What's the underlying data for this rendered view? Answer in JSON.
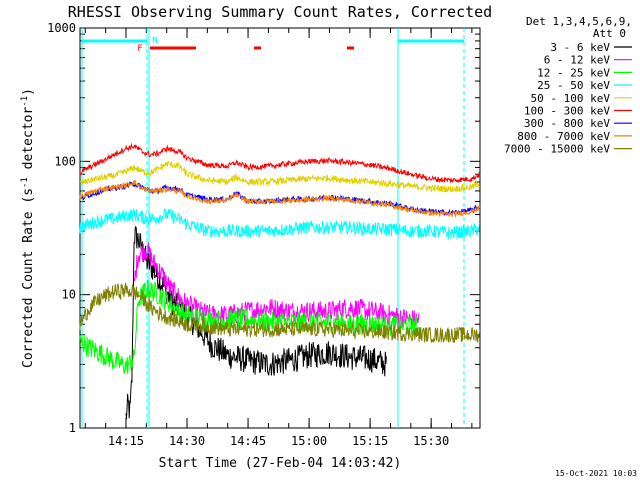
{
  "chart_data": {
    "type": "line",
    "title": "RHESSI Observing Summary Count Rates, Corrected",
    "xlabel": "Start Time (27-Feb-04 14:03:42)",
    "ylabel": "Corrected Count Rate (s⁻¹ detector⁻¹)",
    "ylabel_main": "Corrected Count Rate (s",
    "ylabel_sup1": "-1",
    "ylabel_mid": " detector",
    "ylabel_sup2": "-1",
    "ylabel_end": ")",
    "footer": "15-Oct-2021 10:03",
    "y_scale": "log",
    "ylim": [
      1,
      1000
    ],
    "xlim": [
      "14:03:42",
      "15:42:00"
    ],
    "y_ticks": [
      {
        "value": 1,
        "label": "1"
      },
      {
        "value": 10,
        "label": "10"
      },
      {
        "value": 100,
        "label": "100"
      },
      {
        "value": 1000,
        "label": "1000"
      }
    ],
    "x_ticks": [
      "14:15",
      "14:30",
      "14:45",
      "15:00",
      "15:15",
      "15:30"
    ],
    "legend_position": "outside-right",
    "legend_header": [
      "Det 1,3,4,5,6,9,",
      "Att 0"
    ],
    "flag_labels": [
      "F",
      "N"
    ],
    "series": [
      {
        "name": "3 - 6 keV",
        "color": "#000000",
        "x": [
          "14:15",
          "14:15:30",
          "14:16",
          "14:16:30",
          "14:17",
          "14:18",
          "14:20",
          "14:22",
          "14:24",
          "14:26",
          "14:28",
          "14:30",
          "14:33",
          "14:36",
          "14:40",
          "14:45",
          "14:50",
          "14:55",
          "15:00",
          "15:05",
          "15:10",
          "15:15",
          "15:19"
        ],
        "y": [
          1.2,
          1.5,
          1.3,
          2.5,
          28,
          26,
          18,
          15,
          12,
          9,
          8,
          7,
          5.5,
          4.2,
          3.5,
          3.2,
          3.0,
          3.2,
          3.5,
          3.7,
          3.4,
          3.3,
          3.0
        ]
      },
      {
        "name": "6 - 12 keV",
        "color": "#ff00ff",
        "x": [
          "14:17",
          "14:18",
          "14:20",
          "14:22",
          "14:24",
          "14:26",
          "14:28",
          "14:30",
          "14:33",
          "14:36",
          "14:40",
          "14:45",
          "14:50",
          "14:55",
          "15:00",
          "15:05",
          "15:10",
          "15:15",
          "15:20",
          "15:25",
          "15:27"
        ],
        "y": [
          12,
          20,
          22,
          17,
          14,
          11,
          9.5,
          8.5,
          7.5,
          7,
          7,
          7.5,
          8,
          7.5,
          7.5,
          7.5,
          8,
          7.5,
          7,
          6.5,
          6.5
        ]
      },
      {
        "name": "12 - 25 keV",
        "color": "#00ff00",
        "x": [
          "14:03:42",
          "14:06",
          "14:09",
          "14:12",
          "14:15",
          "14:17",
          "14:18",
          "14:20",
          "14:22",
          "14:24",
          "14:26",
          "14:28",
          "14:30",
          "14:35",
          "14:40",
          "14:45",
          "14:50",
          "14:55",
          "15:00",
          "15:05",
          "15:10",
          "15:15",
          "15:20",
          "15:25",
          "15:27"
        ],
        "y": [
          4.5,
          4.0,
          3.6,
          3.2,
          2.9,
          3.3,
          9,
          11,
          10.5,
          9.5,
          8.5,
          7.5,
          7,
          6.5,
          6.5,
          6.5,
          6.2,
          6.2,
          6.2,
          6.2,
          6.0,
          6.0,
          5.8,
          5.8,
          5.8
        ]
      },
      {
        "name": "25 - 50 keV",
        "color": "#00ffff",
        "x": [
          "14:03:42",
          "14:06",
          "14:09",
          "14:12",
          "14:15",
          "14:17",
          "14:19",
          "14:21",
          "14:23",
          "14:25",
          "14:27",
          "14:30",
          "14:35",
          "14:40",
          "14:45",
          "14:50",
          "14:55",
          "15:00",
          "15:05",
          "15:10",
          "15:15",
          "15:20",
          "15:25",
          "15:30",
          "15:35",
          "15:40",
          "15:42"
        ],
        "y": [
          32,
          34,
          36,
          37,
          39,
          40,
          38,
          37,
          38,
          40,
          38,
          34,
          30,
          30,
          30,
          30,
          31,
          32,
          32,
          32,
          31,
          31,
          30,
          30,
          29,
          30,
          32
        ]
      },
      {
        "name": "50 - 100 keV",
        "color": "#e0d000",
        "x": [
          "14:03:42",
          "14:06",
          "14:09",
          "14:12",
          "14:15",
          "14:17",
          "14:19",
          "14:21",
          "14:23",
          "14:25",
          "14:28",
          "14:30",
          "14:35",
          "14:40",
          "14:42",
          "14:45",
          "14:50",
          "14:55",
          "15:00",
          "15:05",
          "15:10",
          "15:15",
          "15:20",
          "15:25",
          "15:30",
          "15:35",
          "15:40",
          "15:42"
        ],
        "y": [
          68,
          72,
          75,
          78,
          84,
          90,
          84,
          82,
          88,
          96,
          92,
          80,
          72,
          70,
          76,
          70,
          70,
          72,
          74,
          75,
          72,
          70,
          68,
          65,
          63,
          62,
          64,
          68
        ]
      },
      {
        "name": "100 - 300 keV",
        "color": "#ff0000",
        "x": [
          "14:03:42",
          "14:06",
          "14:09",
          "14:12",
          "14:15",
          "14:17",
          "14:19",
          "14:21",
          "14:23",
          "14:25",
          "14:28",
          "14:30",
          "14:35",
          "14:40",
          "14:42",
          "14:45",
          "14:50",
          "14:55",
          "15:00",
          "15:05",
          "15:10",
          "15:15",
          "15:20",
          "15:25",
          "15:30",
          "15:35",
          "15:40",
          "15:42"
        ],
        "y": [
          82,
          90,
          100,
          112,
          125,
          130,
          118,
          112,
          115,
          125,
          118,
          106,
          94,
          92,
          98,
          90,
          92,
          96,
          100,
          101,
          98,
          94,
          88,
          80,
          74,
          72,
          74,
          80
        ]
      },
      {
        "name": "300 - 800 keV",
        "color": "#0000ff",
        "x": [
          "14:03:42",
          "14:06",
          "14:09",
          "14:12",
          "14:15",
          "14:17",
          "14:19",
          "14:21",
          "14:23",
          "14:25",
          "14:28",
          "14:30",
          "14:35",
          "14:40",
          "14:42",
          "14:45",
          "14:50",
          "14:55",
          "15:00",
          "15:05",
          "15:10",
          "15:15",
          "15:20",
          "15:25",
          "15:30",
          "15:35",
          "15:40",
          "15:42"
        ],
        "y": [
          52,
          56,
          60,
          63,
          65,
          68,
          64,
          60,
          60,
          64,
          62,
          56,
          52,
          52,
          58,
          50,
          50,
          52,
          52,
          54,
          52,
          50,
          48,
          44,
          42,
          41,
          43,
          46
        ]
      },
      {
        "name": "800 - 7000 keV",
        "color": "#ff8000",
        "x": [
          "14:03:42",
          "14:06",
          "14:09",
          "14:12",
          "14:15",
          "14:17",
          "14:19",
          "14:21",
          "14:23",
          "14:25",
          "14:28",
          "14:30",
          "14:35",
          "14:40",
          "14:42",
          "14:45",
          "14:50",
          "14:55",
          "15:00",
          "15:05",
          "15:10",
          "15:15",
          "15:20",
          "15:25",
          "15:30",
          "15:35",
          "15:40",
          "15:42"
        ],
        "y": [
          54,
          58,
          62,
          64,
          66,
          70,
          62,
          60,
          60,
          62,
          60,
          55,
          50,
          51,
          56,
          50,
          50,
          51,
          52,
          53,
          51,
          49,
          47,
          43,
          41,
          40,
          42,
          45
        ]
      },
      {
        "name": "7000 - 15000 keV",
        "color": "#808000",
        "x": [
          "14:03:42",
          "14:06",
          "14:09",
          "14:12",
          "14:15",
          "14:17",
          "14:19",
          "14:21",
          "14:24",
          "14:27",
          "14:30",
          "14:35",
          "14:40",
          "14:45",
          "14:50",
          "14:55",
          "15:00",
          "15:05",
          "15:10",
          "15:15",
          "15:20",
          "15:25",
          "15:30",
          "15:35",
          "15:40",
          "15:42"
        ],
        "y": [
          6.0,
          8.0,
          9.5,
          10.5,
          10.8,
          10.5,
          9.5,
          8,
          7,
          6.5,
          6,
          5.8,
          5.5,
          5.5,
          5.5,
          5.5,
          5.5,
          5.5,
          5.3,
          5.3,
          5.2,
          5.1,
          5.0,
          5.0,
          5.0,
          5.0
        ]
      }
    ]
  }
}
